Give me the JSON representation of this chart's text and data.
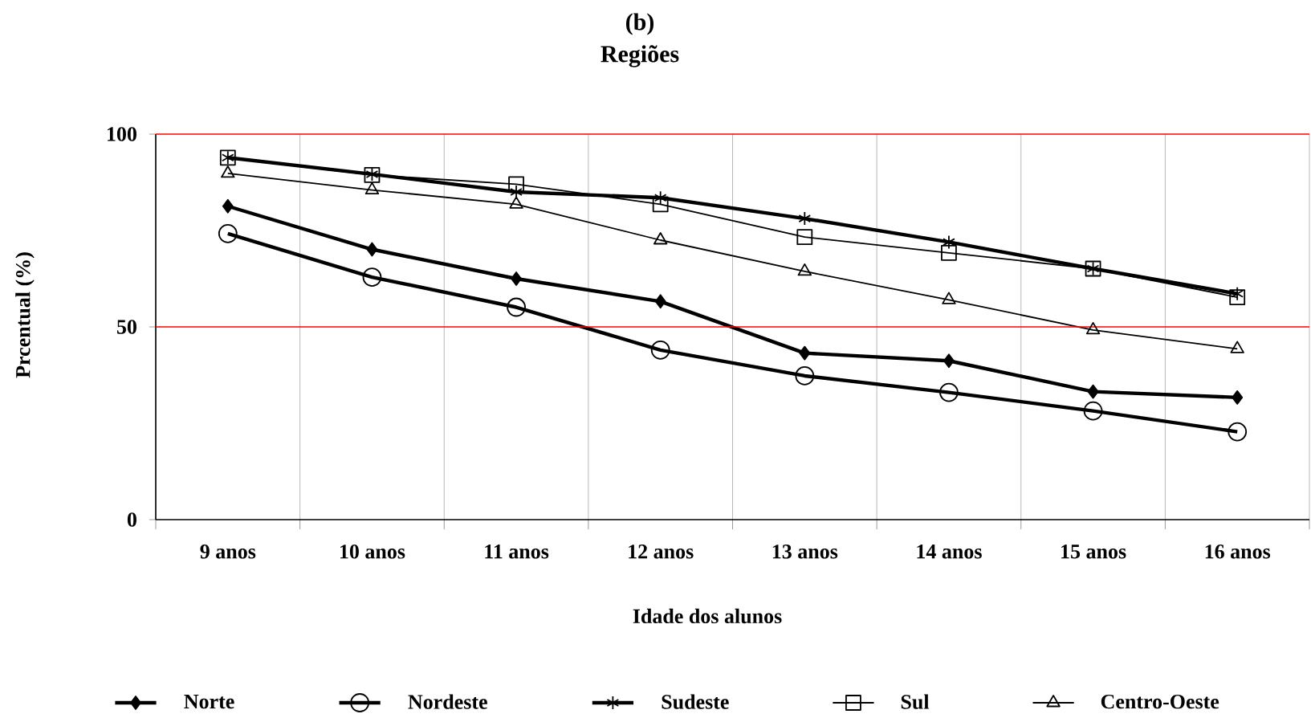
{
  "chart_data": {
    "type": "line",
    "title": "(b)",
    "subtitle": "Regiões",
    "xlabel": "Idade dos alunos",
    "ylabel": "Prcentual (%)",
    "categories": [
      "9 anos",
      "10 anos",
      "11 anos",
      "12 anos",
      "13 anos",
      "14 anos",
      "15 anos",
      "16 anos"
    ],
    "series": [
      {
        "name": "Norte",
        "color": "#000000",
        "marker": "diamond",
        "values": [
          81.3,
          70.1,
          62.5,
          56.6,
          43.2,
          41.2,
          33.2,
          31.7
        ]
      },
      {
        "name": "Nordeste",
        "color": "#000000",
        "marker": "circle",
        "values": [
          74.2,
          62.9,
          55.1,
          44.0,
          37.3,
          33.0,
          28.2,
          22.8
        ]
      },
      {
        "name": "Sudeste",
        "color": "#000000",
        "marker": "cross",
        "values": [
          93.9,
          89.6,
          85.0,
          83.5,
          78.1,
          72.0,
          65.1,
          58.6
        ]
      },
      {
        "name": "Sul",
        "color": "#000000",
        "marker": "square",
        "values": [
          93.9,
          89.4,
          87.0,
          81.8,
          73.3,
          69.2,
          65.1,
          57.7
        ]
      },
      {
        "name": "Centro-Oeste",
        "color": "#000000",
        "marker": "triangle",
        "values": [
          89.8,
          85.5,
          81.8,
          72.5,
          64.4,
          57.0,
          49.2,
          44.3
        ]
      }
    ],
    "ylim": [
      0,
      100
    ],
    "yticks": [
      0,
      50,
      100
    ],
    "grid": "x",
    "legend": "bottom",
    "ref_lines": [
      {
        "axis": "y",
        "value": 50,
        "color": "#ff0000"
      },
      {
        "axis": "y",
        "value": 100,
        "color": "#ff0000"
      }
    ]
  }
}
